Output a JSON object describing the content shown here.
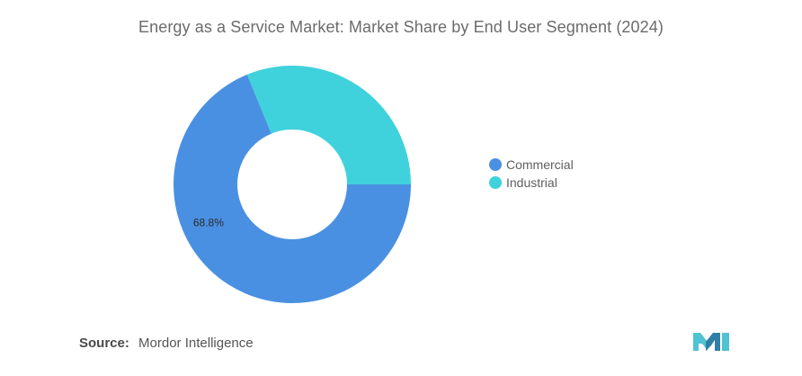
{
  "chart_data": {
    "type": "pie",
    "title": "Energy as a Service Market: Market Share by End User Segment (2024)",
    "hole": true,
    "categories": [
      "Commercial",
      "Industrial"
    ],
    "values": [
      68.8,
      31.2
    ],
    "colors": [
      "#4a90e2",
      "#3fd2dc"
    ],
    "data_labels": [
      "68.8%",
      null
    ],
    "legend": {
      "position": "right",
      "entries": [
        "Commercial",
        "Industrial"
      ]
    }
  },
  "source": {
    "label": "Source:",
    "text": "Mordor Intelligence"
  },
  "logo": {
    "icon": "mordor-intelligence-logo",
    "colors": [
      "#4fc3d1",
      "#2f7fa6"
    ]
  }
}
